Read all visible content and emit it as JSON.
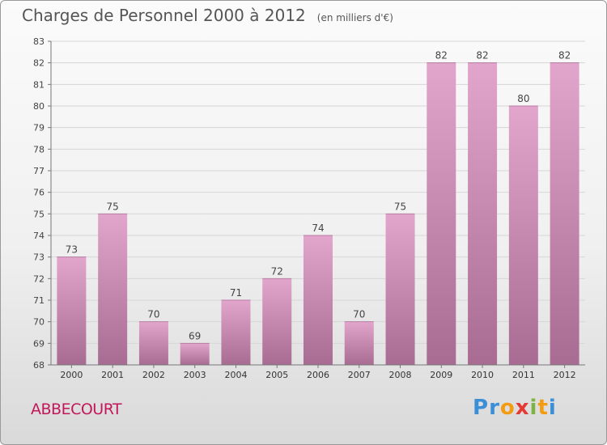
{
  "chart_data": {
    "type": "bar",
    "title": "Charges de Personnel 2000 à 2012",
    "subtitle": "(en milliers d'€)",
    "categories": [
      "2000",
      "2001",
      "2002",
      "2003",
      "2004",
      "2005",
      "2006",
      "2007",
      "2008",
      "2009",
      "2010",
      "2011",
      "2012"
    ],
    "values": [
      73,
      75,
      70,
      69,
      71,
      72,
      74,
      70,
      75,
      82,
      82,
      80,
      82
    ],
    "ylim": [
      68,
      83
    ],
    "yticks": [
      68,
      69,
      70,
      71,
      72,
      73,
      74,
      75,
      76,
      77,
      78,
      79,
      80,
      81,
      82,
      83
    ],
    "grid": true,
    "bar_color_top": "#e2a6cc",
    "bar_color_bottom": "#a86b92"
  },
  "commune": "ABBECOURT",
  "logo": {
    "letters": [
      "P",
      "r",
      "o",
      "x",
      "i",
      "t",
      "i"
    ],
    "colors": [
      "#3b8fd6",
      "#3b8fd6",
      "#f39c12",
      "#e53935",
      "#7cb342",
      "#f39c12",
      "#3b8fd6"
    ]
  }
}
